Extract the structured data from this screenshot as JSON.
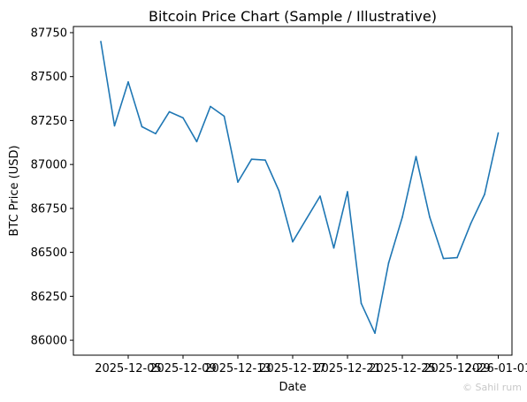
{
  "chart_data": {
    "type": "line",
    "title": "Bitcoin Price Chart (Sample / Illustrative)",
    "xlabel": "Date",
    "ylabel": "BTC Price (USD)",
    "ylim": [
      85915,
      87785
    ],
    "xlim": [
      "2025-12-01",
      "2026-01-02"
    ],
    "grid": false,
    "line_color": "#1f77b4",
    "x_ticks": [
      {
        "date": "2025-12-05",
        "label": "2025-12-05"
      },
      {
        "date": "2025-12-09",
        "label": "2025-12-09"
      },
      {
        "date": "2025-12-13",
        "label": "2025-12-13"
      },
      {
        "date": "2025-12-17",
        "label": "2025-12-17"
      },
      {
        "date": "2025-12-21",
        "label": "2025-12-21"
      },
      {
        "date": "2025-12-25",
        "label": "2025-12-25"
      },
      {
        "date": "2025-12-29",
        "label": "2025-12-29"
      },
      {
        "date": "2026-01-01",
        "label": "2026-01-01"
      }
    ],
    "y_ticks": [
      86000,
      86250,
      86500,
      86750,
      87000,
      87250,
      87500,
      87750
    ],
    "x": [
      "2025-12-03",
      "2025-12-04",
      "2025-12-05",
      "2025-12-06",
      "2025-12-07",
      "2025-12-08",
      "2025-12-09",
      "2025-12-10",
      "2025-12-11",
      "2025-12-12",
      "2025-12-13",
      "2025-12-14",
      "2025-12-15",
      "2025-12-16",
      "2025-12-17",
      "2025-12-18",
      "2025-12-19",
      "2025-12-20",
      "2025-12-21",
      "2025-12-22",
      "2025-12-23",
      "2025-12-24",
      "2025-12-25",
      "2025-12-26",
      "2025-12-27",
      "2025-12-28",
      "2025-12-29",
      "2025-12-30",
      "2025-12-31",
      "2026-01-01"
    ],
    "values": [
      87700,
      87220,
      87470,
      87215,
      87175,
      87300,
      87265,
      87130,
      87330,
      87275,
      86900,
      87030,
      87025,
      86850,
      86560,
      86690,
      86820,
      86525,
      86845,
      86210,
      86040,
      86440,
      86700,
      87045,
      86700,
      86465,
      86470,
      86665,
      86830,
      87180
    ]
  },
  "watermark": {
    "text": "© Sahil rum"
  }
}
